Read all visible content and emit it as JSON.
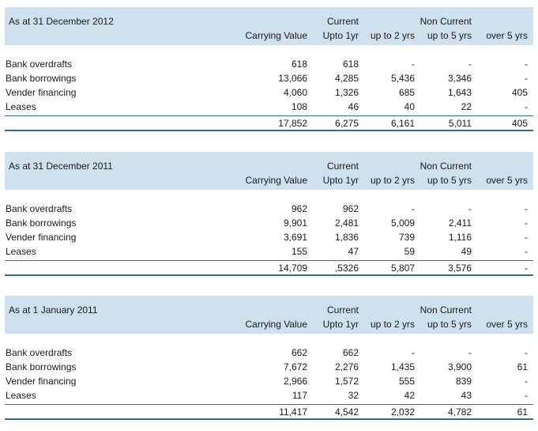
{
  "columns": {
    "carrying_value": "Carrying Value",
    "current_top": "Current",
    "current_bottom": "Upto 1yr",
    "up_to_2": "up to 2 yrs",
    "non_current_top": "Non Current",
    "up_to_5": "up to 5 yrs",
    "over_5": "over 5 yrs"
  },
  "colors": {
    "header_bg": "#cfe0ef",
    "rule": "#2f6fa8"
  },
  "sections": [
    {
      "title": "As at 31 December 2012",
      "rows": [
        {
          "label": "Bank overdrafts",
          "carrying": "618",
          "current": "618",
          "y2": "-",
          "y5": "-",
          "over5": "-"
        },
        {
          "label": "Bank borrowings",
          "carrying": "13,066",
          "current": "4,285",
          "y2": "5,436",
          "y5": "3,346",
          "over5": "-"
        },
        {
          "label": "Vender financing",
          "carrying": "4,060",
          "current": "1,326",
          "y2": "685",
          "y5": "1,643",
          "over5": "405"
        },
        {
          "label": "Leases",
          "carrying": "108",
          "current": "46",
          "y2": "40",
          "y5": "22",
          "over5": "-"
        }
      ],
      "total": {
        "carrying": "17,852",
        "current": "6,275",
        "y2": "6,161",
        "y5": "5,011",
        "over5": "405"
      }
    },
    {
      "title": "As at 31 December 2011",
      "rows": [
        {
          "label": "Bank overdrafts",
          "carrying": "962",
          "current": "962",
          "y2": "-",
          "y5": "-",
          "over5": "-"
        },
        {
          "label": "Bank borrowings",
          "carrying": "9,901",
          "current": "2,481",
          "y2": "5,009",
          "y5": "2,411",
          "over5": "-"
        },
        {
          "label": "Vender financing",
          "carrying": "3,691",
          "current": "1,836",
          "y2": "739",
          "y5": "1,116",
          "over5": "-"
        },
        {
          "label": "Leases",
          "carrying": "155",
          "current": "47",
          "y2": "59",
          "y5": "49",
          "over5": "-"
        }
      ],
      "total": {
        "carrying": "14,709",
        "current": ",5326",
        "y2": "5,807",
        "y5": "3,576",
        "over5": "-"
      }
    },
    {
      "title": "As at 1 January 2011",
      "rows": [
        {
          "label": "Bank overdrafts",
          "carrying": "662",
          "current": "662",
          "y2": "-",
          "y5": "-",
          "over5": "-"
        },
        {
          "label": "Bank borrowings",
          "carrying": "7,672",
          "current": "2,276",
          "y2": "1,435",
          "y5": "3,900",
          "over5": "61"
        },
        {
          "label": "Vender financing",
          "carrying": "2,966",
          "current": "1,572",
          "y2": "555",
          "y5": "839",
          "over5": "-"
        },
        {
          "label": "Leases",
          "carrying": "117",
          "current": "32",
          "y2": "42",
          "y5": "43",
          "over5": "-"
        }
      ],
      "total": {
        "carrying": "11,417",
        "current": "4,542",
        "y2": "2,032",
        "y5": "4,782",
        "over5": "61"
      }
    }
  ]
}
